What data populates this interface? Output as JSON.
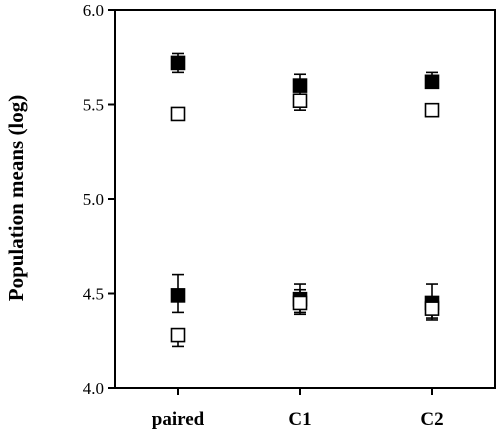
{
  "chart_data": {
    "type": "scatter",
    "title": "",
    "xlabel": "",
    "ylabel": "Population means (log)",
    "categories": [
      "paired",
      "C1",
      "C2"
    ],
    "ylim": [
      4.0,
      6.0
    ],
    "yticks": [
      4.0,
      4.5,
      5.0,
      5.5,
      6.0
    ],
    "ytick_labels": [
      "4.0",
      "4.5",
      "5.0",
      "5.5",
      "6.0"
    ],
    "grid": false,
    "legend": "none",
    "series": [
      {
        "marker": "filled-square",
        "color": "#000000",
        "points": [
          {
            "category": "paired",
            "y": 5.72,
            "err_low": 5.67,
            "err_high": 5.77
          },
          {
            "category": "C1",
            "y": 5.6,
            "err_low": 5.55,
            "err_high": 5.66
          },
          {
            "category": "C2",
            "y": 5.62,
            "err_low": 5.59,
            "err_high": 5.67
          }
        ]
      },
      {
        "marker": "open-square",
        "color": "#000000",
        "points": [
          {
            "category": "paired",
            "y": 5.45,
            "err_low": 5.45,
            "err_high": 5.45
          },
          {
            "category": "C1",
            "y": 5.52,
            "err_low": 5.47,
            "err_high": 5.52
          },
          {
            "category": "C2",
            "y": 5.47,
            "err_low": 5.46,
            "err_high": 5.5
          }
        ]
      },
      {
        "marker": "filled-square",
        "color": "#000000",
        "points": [
          {
            "category": "paired",
            "y": 4.49,
            "err_low": 4.4,
            "err_high": 4.6
          },
          {
            "category": "C1",
            "y": 4.47,
            "err_low": 4.4,
            "err_high": 4.55
          },
          {
            "category": "C2",
            "y": 4.45,
            "err_low": 4.36,
            "err_high": 4.55
          }
        ]
      },
      {
        "marker": "open-square",
        "color": "#000000",
        "points": [
          {
            "category": "paired",
            "y": 4.28,
            "err_low": 4.22,
            "err_high": 4.28
          },
          {
            "category": "C1",
            "y": 4.45,
            "err_low": 4.39,
            "err_high": 4.52
          },
          {
            "category": "C2",
            "y": 4.42,
            "err_low": 4.37,
            "err_high": 4.46
          }
        ]
      }
    ]
  }
}
